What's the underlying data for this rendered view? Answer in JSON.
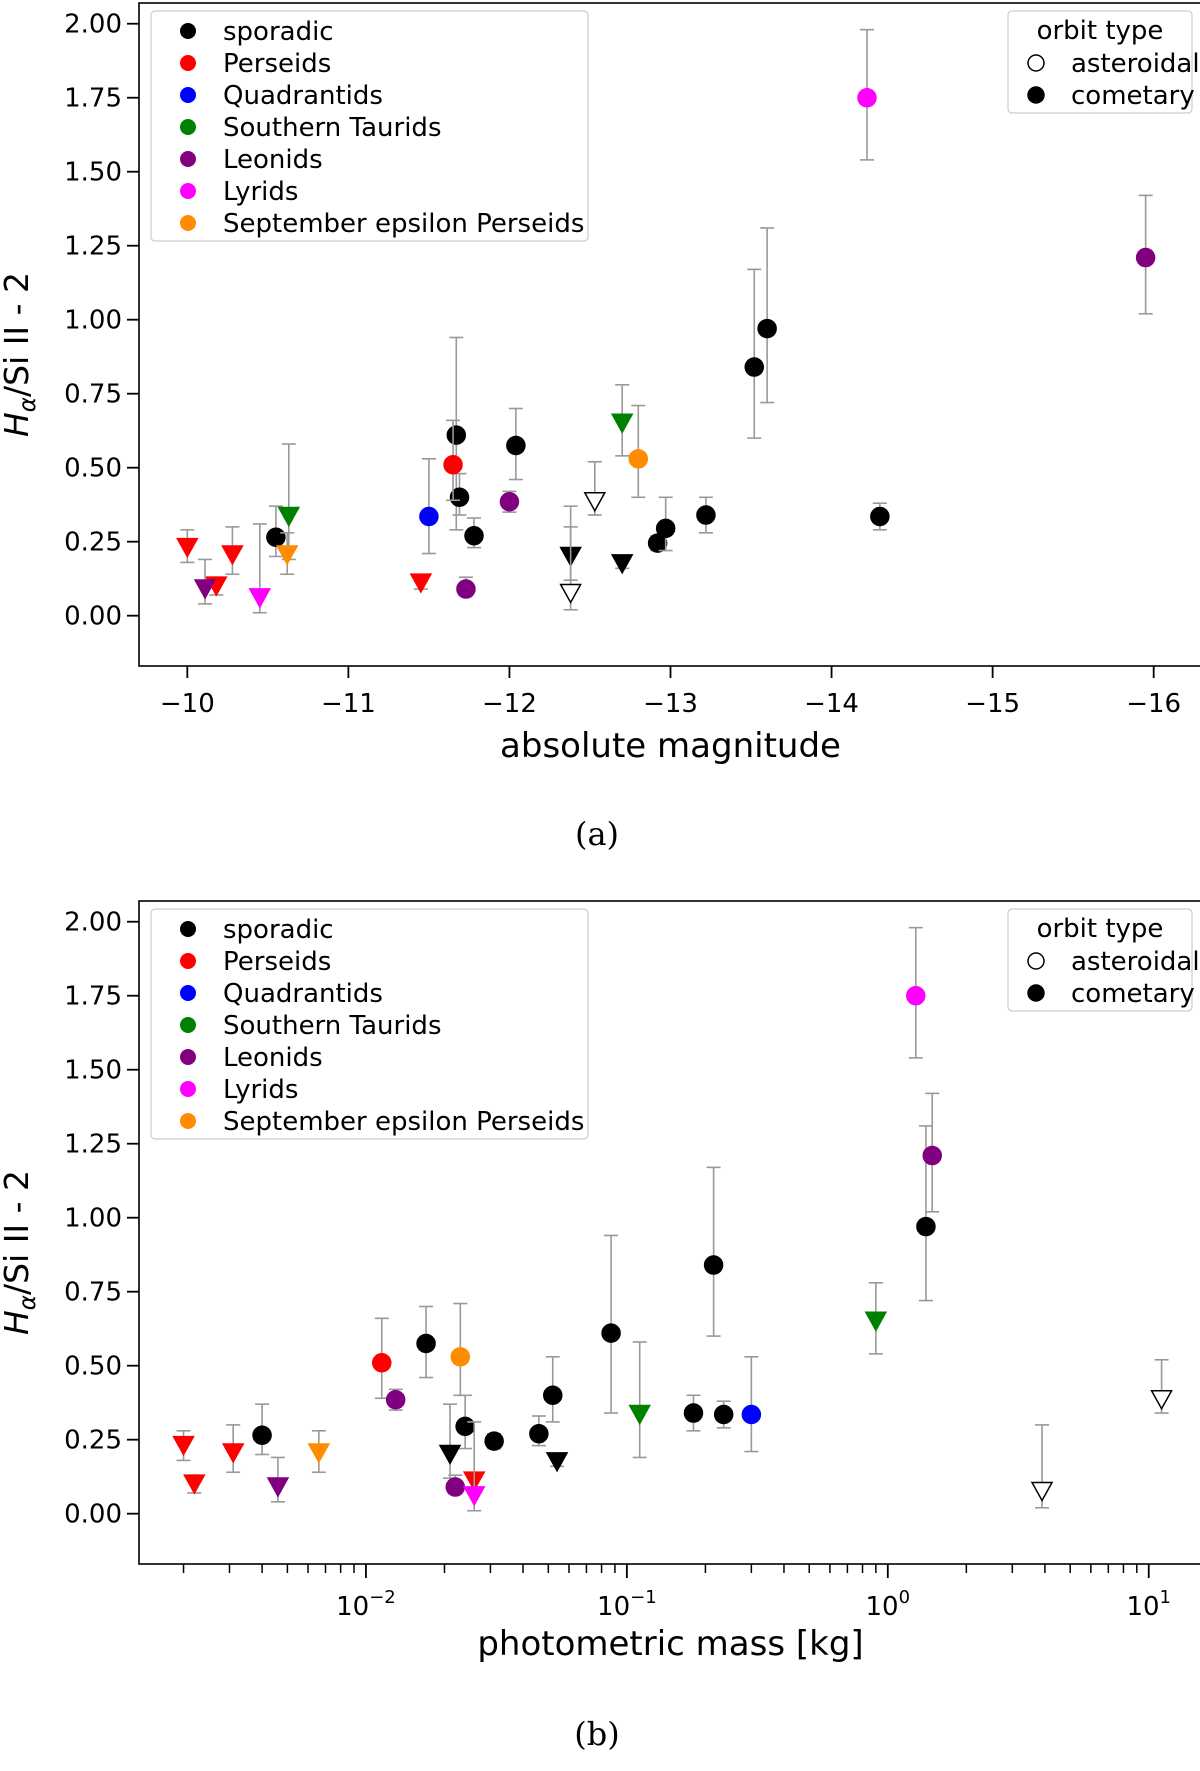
{
  "colors": {
    "sporadic": "#000000",
    "Perseids": "#ff0000",
    "Quadrantids": "#0000ff",
    "Southern Taurids": "#008000",
    "Leonids": "#800080",
    "Lyrids": "#ff00ff",
    "September epsilon Perseids": "#ff8c00",
    "errorbar": "#999999"
  },
  "chart_data": [
    {
      "type": "scatter",
      "panel_label": "(a)",
      "xlabel": "absolute magnitude",
      "ylabel_parts": [
        "H",
        "α",
        "/Si II - 2"
      ],
      "xlim": [
        -9.7,
        -16.3
      ],
      "ylim": [
        -0.17,
        2.07
      ],
      "xscale": "linear",
      "xticks": [
        -10,
        -11,
        -12,
        -13,
        -14,
        -15,
        -16
      ],
      "xtick_labels": [
        "−10",
        "−11",
        "−12",
        "−13",
        "−14",
        "−15",
        "−16"
      ],
      "yticks": [
        0,
        0.25,
        0.5,
        0.75,
        1,
        1.25,
        1.5,
        1.75,
        2
      ],
      "ytick_labels": [
        "0.00",
        "0.25",
        "0.50",
        "0.75",
        "1.00",
        "1.25",
        "1.50",
        "1.75",
        "2.00"
      ],
      "legend_showers": [
        "sporadic",
        "Perseids",
        "Quadrantids",
        "Southern Taurids",
        "Leonids",
        "Lyrids",
        "September epsilon Perseids"
      ],
      "legend_orbit_title": "orbit type",
      "legend_orbit_items": [
        "asteroidal",
        "cometary"
      ],
      "points": [
        {
          "x": -10.55,
          "y": 0.265,
          "lo": 0.2,
          "hi": 0.37,
          "group": "sporadic",
          "marker": "circle",
          "filled": true
        },
        {
          "x": -11.67,
          "y": 0.61,
          "lo": 0.29,
          "hi": 0.94,
          "group": "sporadic",
          "marker": "circle",
          "filled": true
        },
        {
          "x": -11.69,
          "y": 0.4,
          "lo": 0.34,
          "hi": 0.48,
          "group": "sporadic",
          "marker": "circle",
          "filled": true
        },
        {
          "x": -11.78,
          "y": 0.27,
          "lo": 0.23,
          "hi": 0.33,
          "group": "sporadic",
          "marker": "circle",
          "filled": true
        },
        {
          "x": -12.04,
          "y": 0.575,
          "lo": 0.46,
          "hi": 0.7,
          "group": "sporadic",
          "marker": "circle",
          "filled": true
        },
        {
          "x": -12.92,
          "y": 0.245,
          "lo": 0.22,
          "hi": 0.27,
          "group": "sporadic",
          "marker": "circle",
          "filled": true
        },
        {
          "x": -12.97,
          "y": 0.295,
          "lo": 0.22,
          "hi": 0.4,
          "group": "sporadic",
          "marker": "circle",
          "filled": true
        },
        {
          "x": -13.22,
          "y": 0.34,
          "lo": 0.28,
          "hi": 0.4,
          "group": "sporadic",
          "marker": "circle",
          "filled": true
        },
        {
          "x": -13.52,
          "y": 0.84,
          "lo": 0.6,
          "hi": 1.17,
          "group": "sporadic",
          "marker": "circle",
          "filled": true
        },
        {
          "x": -13.6,
          "y": 0.97,
          "lo": 0.72,
          "hi": 1.31,
          "group": "sporadic",
          "marker": "circle",
          "filled": true
        },
        {
          "x": -14.3,
          "y": 0.335,
          "lo": 0.29,
          "hi": 0.38,
          "group": "sporadic",
          "marker": "circle",
          "filled": true
        },
        {
          "x": -12.38,
          "y": 0.2,
          "lo": 0.12,
          "hi": 0.3,
          "group": "sporadic",
          "marker": "triangle",
          "filled": true
        },
        {
          "x": -12.7,
          "y": 0.175,
          "lo": 0.16,
          "hi": 0.19,
          "group": "sporadic",
          "marker": "triangle",
          "filled": true
        },
        {
          "x": -12.38,
          "y": 0.075,
          "lo": 0.02,
          "hi": 0.37,
          "group": "sporadic",
          "marker": "triangle",
          "filled": false
        },
        {
          "x": -12.53,
          "y": 0.385,
          "lo": 0.34,
          "hi": 0.52,
          "group": "sporadic",
          "marker": "triangle",
          "filled": false
        },
        {
          "x": -11.65,
          "y": 0.51,
          "lo": 0.39,
          "hi": 0.66,
          "group": "Perseids",
          "marker": "circle",
          "filled": true
        },
        {
          "x": -10.0,
          "y": 0.23,
          "lo": 0.18,
          "hi": 0.29,
          "group": "Perseids",
          "marker": "triangle",
          "filled": true
        },
        {
          "x": -10.18,
          "y": 0.1,
          "lo": 0.07,
          "hi": 0.13,
          "group": "Perseids",
          "marker": "triangle",
          "filled": true
        },
        {
          "x": -10.28,
          "y": 0.205,
          "lo": 0.14,
          "hi": 0.3,
          "group": "Perseids",
          "marker": "triangle",
          "filled": true
        },
        {
          "x": -11.45,
          "y": 0.11,
          "lo": 0.09,
          "hi": 0.13,
          "group": "Perseids",
          "marker": "triangle",
          "filled": true
        },
        {
          "x": -11.5,
          "y": 0.335,
          "lo": 0.21,
          "hi": 0.53,
          "group": "Quadrantids",
          "marker": "circle",
          "filled": true
        },
        {
          "x": -10.63,
          "y": 0.335,
          "lo": 0.19,
          "hi": 0.58,
          "group": "Southern Taurids",
          "marker": "triangle",
          "filled": true
        },
        {
          "x": -12.7,
          "y": 0.65,
          "lo": 0.54,
          "hi": 0.78,
          "group": "Southern Taurids",
          "marker": "triangle",
          "filled": true
        },
        {
          "x": -11.73,
          "y": 0.09,
          "lo": 0.07,
          "hi": 0.13,
          "group": "Leonids",
          "marker": "circle",
          "filled": true
        },
        {
          "x": -12.0,
          "y": 0.385,
          "lo": 0.35,
          "hi": 0.42,
          "group": "Leonids",
          "marker": "circle",
          "filled": true
        },
        {
          "x": -15.95,
          "y": 1.21,
          "lo": 1.02,
          "hi": 1.42,
          "group": "Leonids",
          "marker": "circle",
          "filled": true
        },
        {
          "x": -10.11,
          "y": 0.09,
          "lo": 0.04,
          "hi": 0.19,
          "group": "Leonids",
          "marker": "triangle",
          "filled": true
        },
        {
          "x": -14.22,
          "y": 1.75,
          "lo": 1.54,
          "hi": 1.98,
          "group": "Lyrids",
          "marker": "circle",
          "filled": true
        },
        {
          "x": -10.45,
          "y": 0.06,
          "lo": 0.01,
          "hi": 0.31,
          "group": "Lyrids",
          "marker": "triangle",
          "filled": true
        },
        {
          "x": -12.8,
          "y": 0.53,
          "lo": 0.4,
          "hi": 0.71,
          "group": "September epsilon Perseids",
          "marker": "circle",
          "filled": true
        },
        {
          "x": -10.62,
          "y": 0.205,
          "lo": 0.14,
          "hi": 0.28,
          "group": "September epsilon Perseids",
          "marker": "triangle",
          "filled": true
        }
      ]
    },
    {
      "type": "scatter",
      "panel_label": "(b)",
      "xlabel": "photometric mass [kg]",
      "ylabel_parts": [
        "H",
        "α",
        "/Si II - 2"
      ],
      "xlim": [
        0.00135,
        16
      ],
      "ylim": [
        -0.17,
        2.07
      ],
      "xscale": "log",
      "xticks": [
        0.01,
        0.1,
        1,
        10
      ],
      "xtick_labels": [
        {
          "base": "10",
          "exp": "−2"
        },
        {
          "base": "10",
          "exp": "−1"
        },
        {
          "base": "10",
          "exp": "0"
        },
        {
          "base": "10",
          "exp": "1"
        }
      ],
      "yticks": [
        0,
        0.25,
        0.5,
        0.75,
        1,
        1.25,
        1.5,
        1.75,
        2
      ],
      "ytick_labels": [
        "0.00",
        "0.25",
        "0.50",
        "0.75",
        "1.00",
        "1.25",
        "1.50",
        "1.75",
        "2.00"
      ],
      "legend_showers": [
        "sporadic",
        "Perseids",
        "Quadrantids",
        "Southern Taurids",
        "Leonids",
        "Lyrids",
        "September epsilon Perseids"
      ],
      "legend_orbit_title": "orbit type",
      "legend_orbit_items": [
        "asteroidal",
        "cometary"
      ],
      "points": [
        {
          "x": 0.004,
          "y": 0.265,
          "lo": 0.2,
          "hi": 0.37,
          "group": "sporadic",
          "marker": "circle",
          "filled": true
        },
        {
          "x": 0.017,
          "y": 0.575,
          "lo": 0.46,
          "hi": 0.7,
          "group": "sporadic",
          "marker": "circle",
          "filled": true
        },
        {
          "x": 0.024,
          "y": 0.295,
          "lo": 0.22,
          "hi": 0.4,
          "group": "sporadic",
          "marker": "circle",
          "filled": true
        },
        {
          "x": 0.031,
          "y": 0.245,
          "lo": 0.22,
          "hi": 0.27,
          "group": "sporadic",
          "marker": "circle",
          "filled": true
        },
        {
          "x": 0.046,
          "y": 0.27,
          "lo": 0.23,
          "hi": 0.33,
          "group": "sporadic",
          "marker": "circle",
          "filled": true
        },
        {
          "x": 0.052,
          "y": 0.4,
          "lo": 0.31,
          "hi": 0.53,
          "group": "sporadic",
          "marker": "circle",
          "filled": true
        },
        {
          "x": 0.087,
          "y": 0.61,
          "lo": 0.34,
          "hi": 0.94,
          "group": "sporadic",
          "marker": "circle",
          "filled": true
        },
        {
          "x": 0.18,
          "y": 0.34,
          "lo": 0.28,
          "hi": 0.4,
          "group": "sporadic",
          "marker": "circle",
          "filled": true
        },
        {
          "x": 0.215,
          "y": 0.84,
          "lo": 0.6,
          "hi": 1.17,
          "group": "sporadic",
          "marker": "circle",
          "filled": true
        },
        {
          "x": 0.235,
          "y": 0.335,
          "lo": 0.29,
          "hi": 0.38,
          "group": "sporadic",
          "marker": "circle",
          "filled": true
        },
        {
          "x": 1.4,
          "y": 0.97,
          "lo": 0.72,
          "hi": 1.31,
          "group": "sporadic",
          "marker": "circle",
          "filled": true
        },
        {
          "x": 0.021,
          "y": 0.2,
          "lo": 0.12,
          "hi": 0.37,
          "group": "sporadic",
          "marker": "triangle",
          "filled": true
        },
        {
          "x": 0.054,
          "y": 0.175,
          "lo": 0.16,
          "hi": 0.19,
          "group": "sporadic",
          "marker": "triangle",
          "filled": true
        },
        {
          "x": 3.9,
          "y": 0.075,
          "lo": 0.02,
          "hi": 0.3,
          "group": "sporadic",
          "marker": "triangle",
          "filled": false
        },
        {
          "x": 11.2,
          "y": 0.385,
          "lo": 0.34,
          "hi": 0.52,
          "group": "sporadic",
          "marker": "triangle",
          "filled": false
        },
        {
          "x": 0.0115,
          "y": 0.51,
          "lo": 0.39,
          "hi": 0.66,
          "group": "Perseids",
          "marker": "circle",
          "filled": true
        },
        {
          "x": 0.002,
          "y": 0.23,
          "lo": 0.18,
          "hi": 0.28,
          "group": "Perseids",
          "marker": "triangle",
          "filled": true
        },
        {
          "x": 0.0022,
          "y": 0.1,
          "lo": 0.07,
          "hi": 0.13,
          "group": "Perseids",
          "marker": "triangle",
          "filled": true
        },
        {
          "x": 0.0031,
          "y": 0.205,
          "lo": 0.14,
          "hi": 0.3,
          "group": "Perseids",
          "marker": "triangle",
          "filled": true
        },
        {
          "x": 0.026,
          "y": 0.11,
          "lo": 0.09,
          "hi": 0.13,
          "group": "Perseids",
          "marker": "triangle",
          "filled": true
        },
        {
          "x": 0.3,
          "y": 0.335,
          "lo": 0.21,
          "hi": 0.53,
          "group": "Quadrantids",
          "marker": "circle",
          "filled": true
        },
        {
          "x": 0.112,
          "y": 0.335,
          "lo": 0.19,
          "hi": 0.58,
          "group": "Southern Taurids",
          "marker": "triangle",
          "filled": true
        },
        {
          "x": 0.9,
          "y": 0.65,
          "lo": 0.54,
          "hi": 0.78,
          "group": "Southern Taurids",
          "marker": "triangle",
          "filled": true
        },
        {
          "x": 0.013,
          "y": 0.385,
          "lo": 0.35,
          "hi": 0.42,
          "group": "Leonids",
          "marker": "circle",
          "filled": true
        },
        {
          "x": 0.022,
          "y": 0.09,
          "lo": 0.07,
          "hi": 0.13,
          "group": "Leonids",
          "marker": "circle",
          "filled": true
        },
        {
          "x": 1.48,
          "y": 1.21,
          "lo": 1.02,
          "hi": 1.42,
          "group": "Leonids",
          "marker": "circle",
          "filled": true
        },
        {
          "x": 0.0046,
          "y": 0.09,
          "lo": 0.04,
          "hi": 0.19,
          "group": "Leonids",
          "marker": "triangle",
          "filled": true
        },
        {
          "x": 1.28,
          "y": 1.75,
          "lo": 1.54,
          "hi": 1.98,
          "group": "Lyrids",
          "marker": "circle",
          "filled": true
        },
        {
          "x": 0.026,
          "y": 0.06,
          "lo": 0.01,
          "hi": 0.31,
          "group": "Lyrids",
          "marker": "triangle",
          "filled": true
        },
        {
          "x": 0.023,
          "y": 0.53,
          "lo": 0.4,
          "hi": 0.71,
          "group": "September epsilon Perseids",
          "marker": "circle",
          "filled": true
        },
        {
          "x": 0.0066,
          "y": 0.205,
          "lo": 0.14,
          "hi": 0.28,
          "group": "September epsilon Perseids",
          "marker": "triangle",
          "filled": true
        }
      ]
    }
  ]
}
